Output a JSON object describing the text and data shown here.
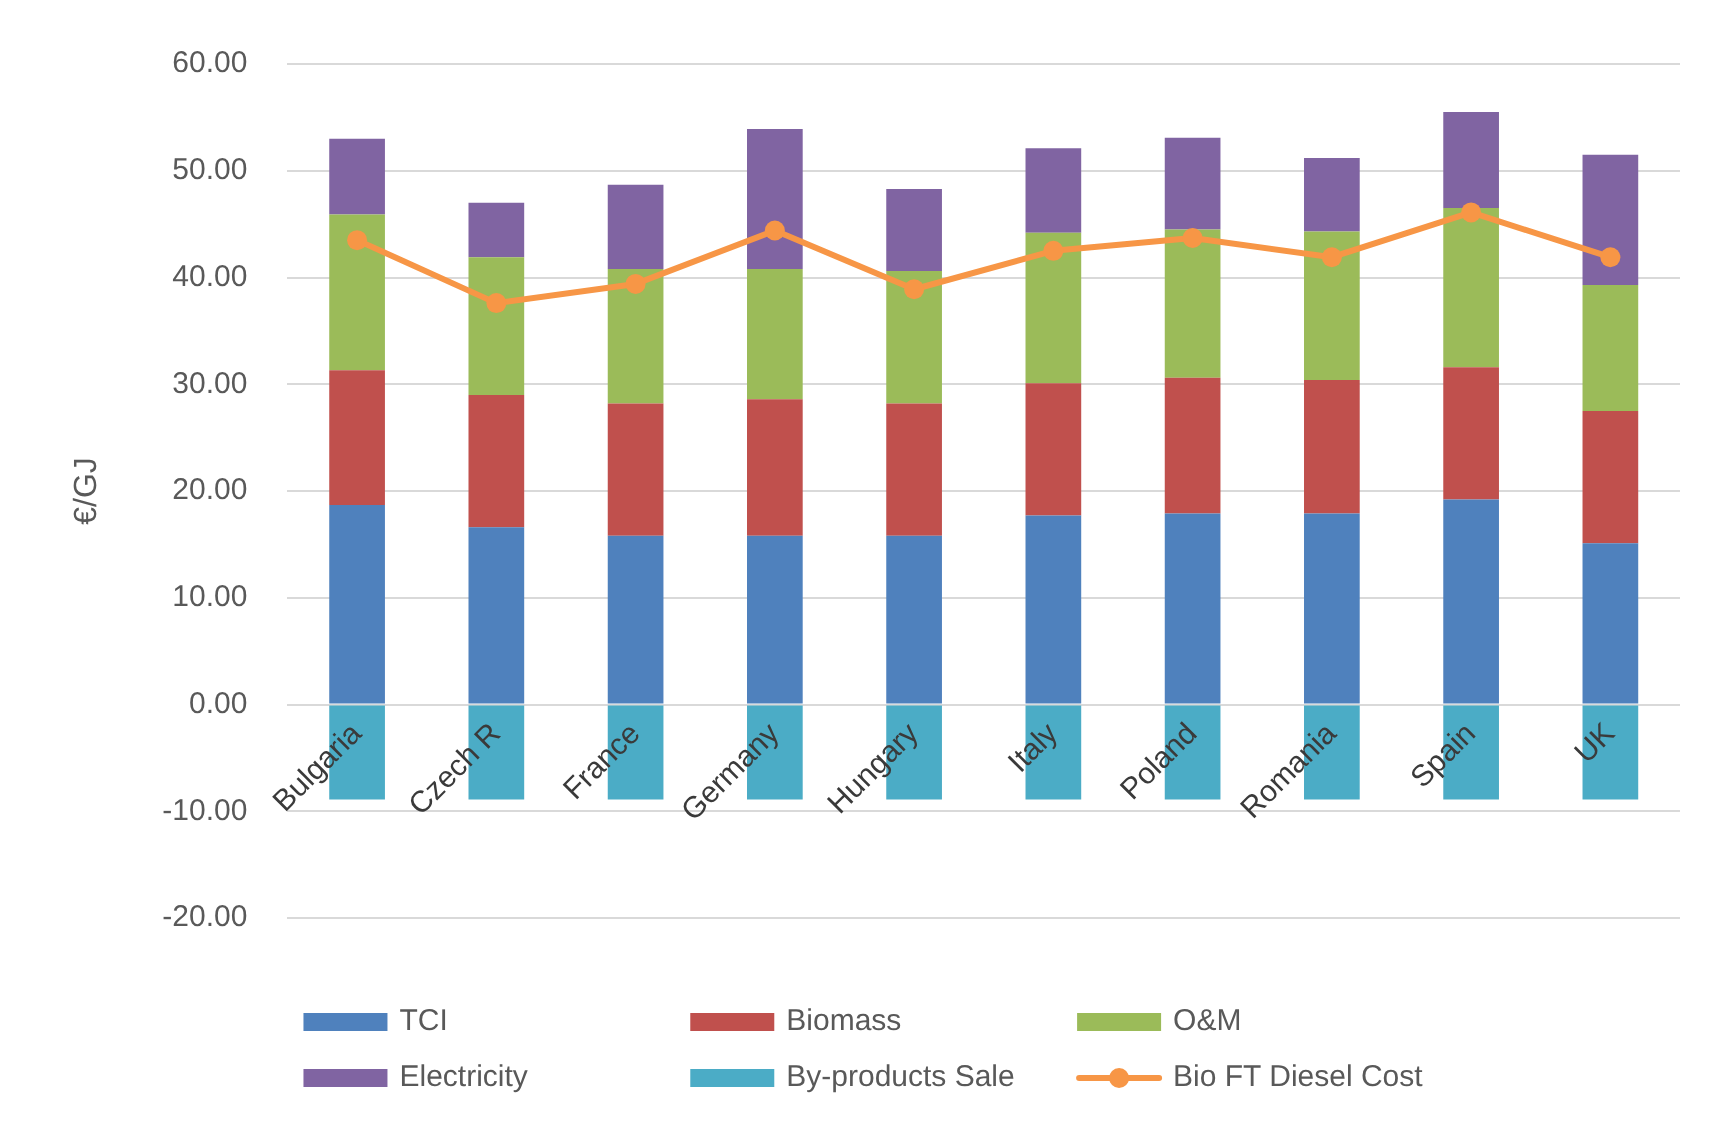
{
  "chart_data": {
    "type": "bar",
    "stacked": true,
    "ylabel": "€/GJ",
    "categories": [
      "Bulgaria",
      "Czech R",
      "France",
      "Germany",
      "Hungary",
      "Italy",
      "Poland",
      "Romania",
      "Spain",
      "UK"
    ],
    "series": [
      {
        "name": "TCI",
        "color": "#4f81bd",
        "values": [
          18.7,
          16.6,
          15.8,
          15.8,
          15.8,
          17.7,
          17.9,
          17.9,
          19.2,
          15.1
        ]
      },
      {
        "name": "Biomass",
        "color": "#c0504d",
        "values": [
          12.6,
          12.4,
          12.4,
          12.8,
          12.4,
          12.4,
          12.7,
          12.5,
          12.4,
          12.4
        ]
      },
      {
        "name": "O&M",
        "color": "#9bbb59",
        "values": [
          14.6,
          12.9,
          12.6,
          12.2,
          12.4,
          14.1,
          13.9,
          13.9,
          14.9,
          11.8
        ]
      },
      {
        "name": "Electricity",
        "color": "#8064a2",
        "values": [
          7.1,
          5.1,
          7.9,
          13.1,
          7.7,
          7.9,
          8.6,
          6.9,
          9.0,
          12.2
        ]
      },
      {
        "name": "By-products Sale",
        "color": "#4bacc6",
        "values": [
          -8.9,
          -8.9,
          -8.9,
          -8.9,
          -8.9,
          -8.9,
          -8.9,
          -8.9,
          -8.9,
          -8.9
        ]
      },
      {
        "name": "Bio FT Diesel Cost",
        "type": "line",
        "color": "#f79646",
        "values": [
          43.5,
          37.6,
          39.4,
          44.4,
          38.9,
          42.5,
          43.7,
          41.9,
          46.1,
          41.9
        ]
      }
    ],
    "ylim": [
      -20,
      60
    ],
    "yticks": [
      {
        "value": -20,
        "label": "-20.00"
      },
      {
        "value": -10,
        "label": "-10.00"
      },
      {
        "value": 0,
        "label": "0.00"
      },
      {
        "value": 10,
        "label": "10.00"
      },
      {
        "value": 20,
        "label": "20.00"
      },
      {
        "value": 30,
        "label": "30.00"
      },
      {
        "value": 40,
        "label": "40.00"
      },
      {
        "value": 50,
        "label": "50.00"
      },
      {
        "value": 60,
        "label": "60.00"
      }
    ],
    "grid": "y",
    "legend": "bottom",
    "marker": "circle"
  }
}
